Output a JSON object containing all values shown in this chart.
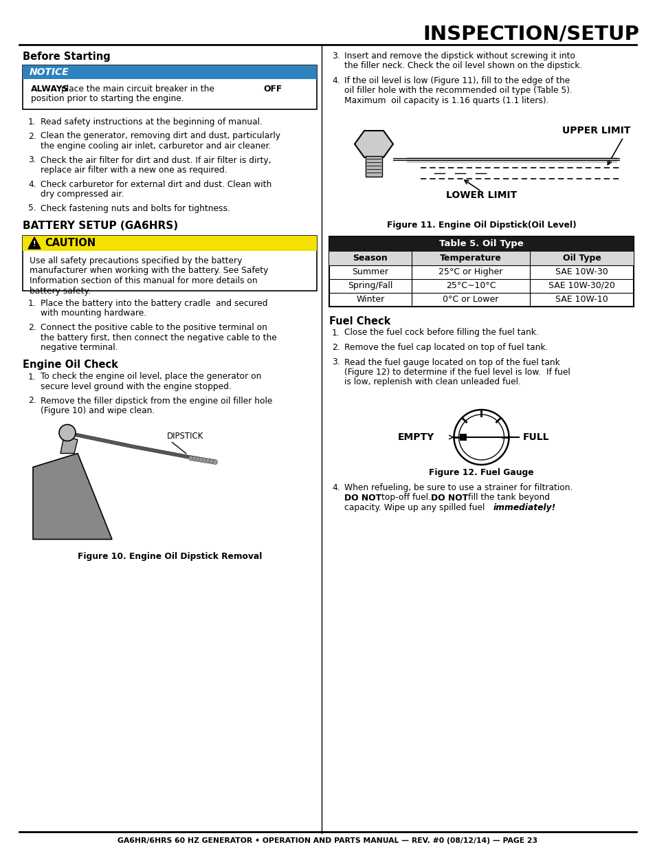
{
  "title": "INSPECTION/SETUP",
  "footer": "GA6HR/6HRS 60 HZ GENERATOR • OPERATION AND PARTS MANUAL — REV. #0 (08/12/14) — PAGE 23",
  "bg_color": "#ffffff",
  "notice_bg": "#2e82be",
  "caution_bg": "#f5e100",
  "left_col": {
    "before_starting_header": "Before Starting",
    "notice_label": "NOTICE",
    "before_starting_items": [
      "Read safety instructions at the beginning of manual.",
      "Clean the generator, removing dirt and dust, particularly\nthe engine cooling air inlet, carburetor and air cleaner.",
      "Check the air filter for dirt and dust. If air filter is dirty,\nreplace air filter with a new one as required.",
      "Check carburetor for external dirt and dust. Clean with\ndry compressed air.",
      "Check fastening nuts and bolts for tightness."
    ],
    "battery_header": "BATTERY SETUP (GA6HRS)",
    "caution_label": "CAUTION",
    "caution_text_lines": [
      "Use all safety precautions specified by the battery",
      "manufacturer when working with the battery. See Safety",
      "Information section of this manual for more details on",
      "battery safety."
    ],
    "battery_items": [
      "Place the battery into the battery cradle  and secured\nwith mounting hardware.",
      "Connect the positive cable to the positive terminal on\nthe battery first, then connect the negative cable to the\nnegative terminal."
    ],
    "engine_oil_header": "Engine Oil Check",
    "engine_oil_items": [
      "To check the engine oil level, place the generator on\nsecure level ground with the engine stopped.",
      "Remove the filler dipstick from the engine oil filler hole\n(Figure 10) and wipe clean."
    ],
    "fig10_caption": "Figure 10. Engine Oil Dipstick Removal"
  },
  "right_col": {
    "right_items_top": [
      "Insert and remove the dipstick without screwing it into\nthe filler neck. Check the oil level shown on the dipstick.",
      "If the oil level is low (Figure 11), fill to the edge of the\noil filler hole with the recommended oil type (Table 5).\nMaximum  oil capacity is 1.16 quarts (1.1 liters)."
    ],
    "upper_limit_label": "UPPER LIMIT",
    "lower_limit_label": "LOWER LIMIT",
    "fig11_caption": "Figure 11. Engine Oil Dipstick(Oil Level)",
    "table_title": "Table 5. Oil Type",
    "table_col_headers": [
      "Season",
      "Temperature",
      "Oil Type"
    ],
    "table_rows": [
      [
        "Summer",
        "25°C or Higher",
        "SAE 10W-30"
      ],
      [
        "Spring/Fall",
        "25°C~10°C",
        "SAE 10W-30/20"
      ],
      [
        "Winter",
        "0°C or Lower",
        "SAE 10W-10"
      ]
    ],
    "fuel_check_header": "Fuel Check",
    "fuel_check_items": [
      "Close the fuel cock before filling the fuel tank.",
      "Remove the fuel cap located on top of fuel tank.",
      "Read the fuel gauge located on top of the fuel tank\n(Figure 12) to determine if the fuel level is low.  If fuel\nis low, replenish with clean unleaded fuel."
    ],
    "empty_label": "EMPTY",
    "full_label": "FULL",
    "fig12_caption": "Figure 12. Fuel Gauge",
    "refuel_line1": "When refueling, be sure to use a strainer for filtration.",
    "refuel_line2": "DO NOT top-off fuel. DO NOT fill the tank beyond",
    "refuel_line3": "capacity. Wipe up any spilled fuel ",
    "refuel_italic": "immediately!"
  }
}
